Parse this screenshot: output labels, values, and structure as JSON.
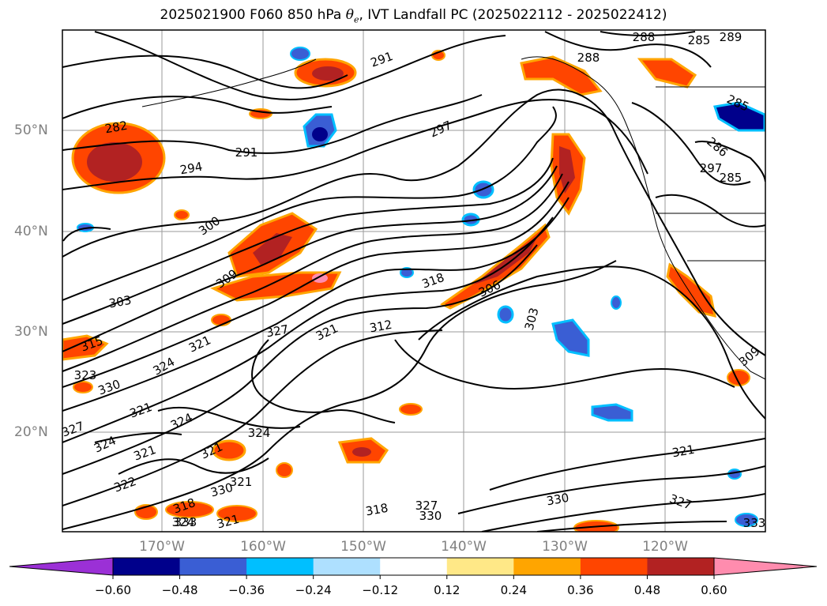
{
  "title": {
    "prefix": "2025021900 F060 850 hPa",
    "theta": "θ",
    "theta_sub": "e",
    "suffix": ", IVT Landfall PC (2025022112 - 2025022412)"
  },
  "map": {
    "lat_labels": [
      "50°N",
      "40°N",
      "30°N",
      "20°N"
    ],
    "lon_labels": [
      "170°W",
      "160°W",
      "150°W",
      "140°W",
      "130°W",
      "120°W"
    ],
    "contour_labels": [
      "288",
      "285",
      "289",
      "291",
      "288",
      "297",
      "285",
      "286",
      "282",
      "291",
      "294",
      "300",
      "285",
      "309",
      "303",
      "297",
      "318",
      "306",
      "303",
      "315",
      "327",
      "321",
      "312",
      "321",
      "324",
      "323",
      "330",
      "321",
      "324",
      "327",
      "324",
      "321",
      "321",
      "324",
      "322",
      "321",
      "330",
      "318",
      "321",
      "324",
      "318",
      "327",
      "330",
      "330",
      "321",
      "327",
      "333",
      "333",
      "309"
    ]
  },
  "colorbar": {
    "ticks": [
      "−0.60",
      "−0.48",
      "−0.36",
      "−0.24",
      "−0.12",
      "0.12",
      "0.24",
      "0.36",
      "0.48",
      "0.60"
    ],
    "colors": [
      "#9b30d6",
      "#00008b",
      "#3a5ed4",
      "#00bfff",
      "#aee0ff",
      "#ffffff",
      "#ffe887",
      "#ffa500",
      "#ff4500",
      "#b22222",
      "#ff8cae",
      "#ff8cae"
    ]
  }
}
